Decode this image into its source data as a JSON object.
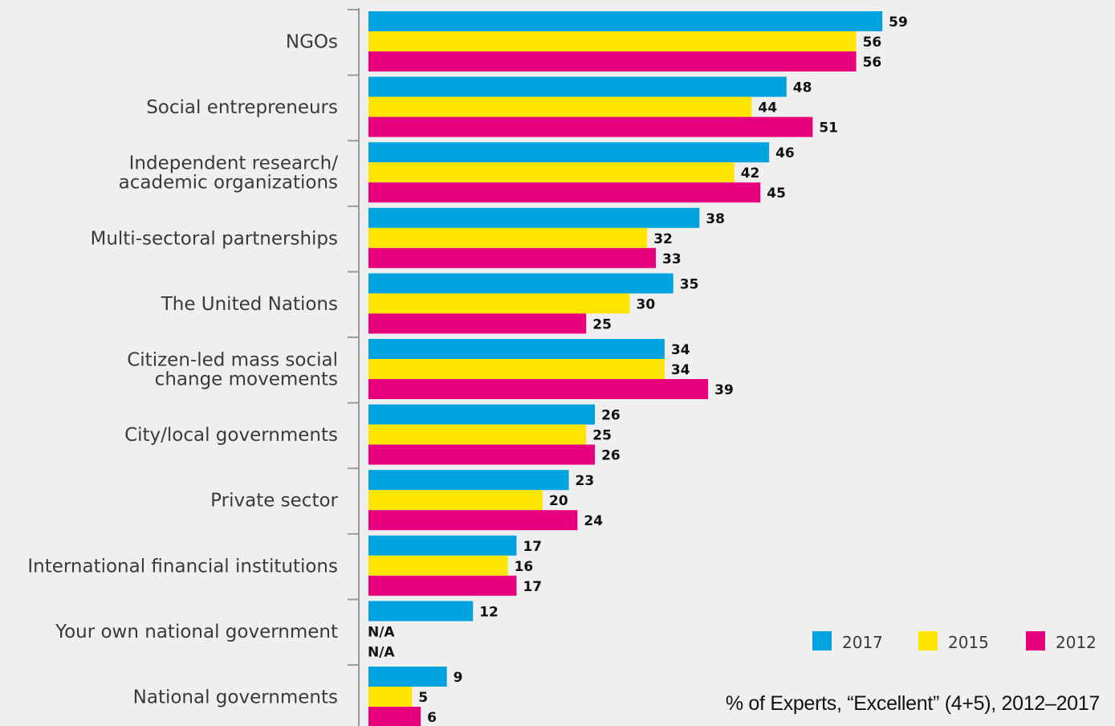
{
  "chart_data": {
    "type": "bar",
    "orientation": "horizontal",
    "categories": [
      [
        "NGOs"
      ],
      [
        "Social entrepreneurs"
      ],
      [
        "Independent research/",
        "academic organizations"
      ],
      [
        "Multi-sectoral partnerships"
      ],
      [
        "The United Nations"
      ],
      [
        "Citizen-led mass social",
        "change movements"
      ],
      [
        "City/local governments"
      ],
      [
        "Private  sector"
      ],
      [
        "International financial institutions"
      ],
      [
        "Your own national government"
      ],
      [
        "National governments"
      ]
    ],
    "series": [
      {
        "name": "2017",
        "color": "#00a3e0",
        "values": [
          59,
          48,
          46,
          38,
          35,
          34,
          26,
          23,
          17,
          12,
          9
        ]
      },
      {
        "name": "2015",
        "color": "#ffe600",
        "values": [
          56,
          44,
          42,
          32,
          30,
          34,
          25,
          20,
          16,
          null,
          5
        ]
      },
      {
        "name": "2012",
        "color": "#e6007e",
        "values": [
          56,
          51,
          45,
          33,
          25,
          39,
          26,
          24,
          17,
          null,
          6
        ]
      }
    ],
    "missing_label": "N/A",
    "caption": "% of Experts, “Excellent” (4+5), 2012–2017",
    "legend_placement": "bottom-right",
    "xlim": [
      0,
      100
    ],
    "grid": false
  }
}
